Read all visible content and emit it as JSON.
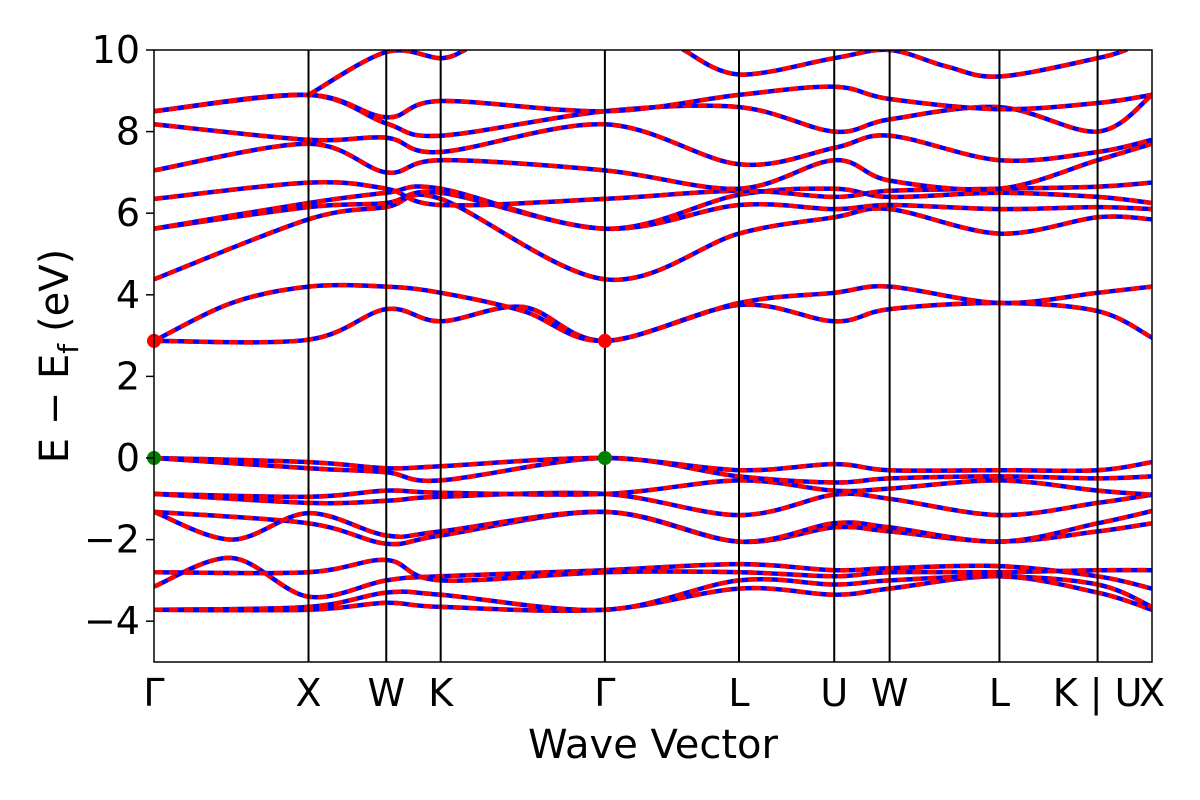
{
  "chart_data": {
    "type": "line",
    "title": "",
    "xlabel": "Wave Vector",
    "ylabel_main": "E − E",
    "ylabel_sub": "f",
    "ylabel_unit": "(eV)",
    "ylim": [
      -5,
      10
    ],
    "yticks": [
      -4,
      -2,
      0,
      2,
      4,
      6,
      8,
      10
    ],
    "ytick_labels": [
      "−4",
      "−2",
      "0",
      "2",
      "4",
      "6",
      "8",
      "10"
    ],
    "grid": false,
    "xlim": [
      0,
      10.27
    ],
    "kpath": [
      {
        "label": "Γ",
        "x": 0.0
      },
      {
        "label": "X",
        "x": 1.59
      },
      {
        "label": "W",
        "x": 2.39
      },
      {
        "label": "K",
        "x": 2.95
      },
      {
        "label": "Γ",
        "x": 4.64
      },
      {
        "label": "L",
        "x": 6.02
      },
      {
        "label": "U",
        "x": 7.0
      },
      {
        "label": "W",
        "x": 7.57
      },
      {
        "label": "L",
        "x": 8.7
      },
      {
        "label": "K | U",
        "x": 9.71
      },
      {
        "label": "X",
        "x": 10.27
      }
    ],
    "colors": {
      "overlay": "#ff0000",
      "base": "#0000ff",
      "axes": "#000000",
      "vbm": "#008000",
      "cbm": "#ff0000"
    },
    "extrema": {
      "vbm": [
        {
          "x": 0.0,
          "y": 0.0
        },
        {
          "x": 4.64,
          "y": 0.0
        }
      ],
      "cbm": [
        {
          "x": 0.0,
          "y": 2.87
        },
        {
          "x": 4.64,
          "y": 2.87
        }
      ]
    },
    "series": [
      {
        "values": [
          [
            0,
            -3.72
          ],
          [
            1.59,
            -3.72
          ],
          [
            2.39,
            -3.55
          ],
          [
            2.95,
            -3.65
          ],
          [
            4.64,
            -3.72
          ],
          [
            6.02,
            -3.2
          ],
          [
            7.0,
            -3.35
          ],
          [
            7.57,
            -3.2
          ],
          [
            8.7,
            -2.9
          ],
          [
            9.71,
            -3.3
          ],
          [
            10.27,
            -3.72
          ]
        ]
      },
      {
        "values": [
          [
            0,
            -3.72
          ],
          [
            1.59,
            -3.65
          ],
          [
            2.39,
            -3.3
          ],
          [
            2.95,
            -3.35
          ],
          [
            4.64,
            -3.72
          ],
          [
            6.02,
            -3.0
          ],
          [
            7.0,
            -3.1
          ],
          [
            7.57,
            -3.0
          ],
          [
            8.7,
            -2.9
          ],
          [
            9.71,
            -3.1
          ],
          [
            10.27,
            -3.65
          ]
        ]
      },
      {
        "values": [
          [
            0,
            -3.15
          ],
          [
            0.8,
            -2.45
          ],
          [
            1.59,
            -3.4
          ],
          [
            2.39,
            -3.0
          ],
          [
            2.95,
            -2.9
          ],
          [
            4.64,
            -2.75
          ],
          [
            6.02,
            -2.6
          ],
          [
            7.0,
            -2.75
          ],
          [
            7.57,
            -2.7
          ],
          [
            8.7,
            -2.65
          ],
          [
            9.71,
            -2.9
          ],
          [
            10.27,
            -3.2
          ]
        ]
      },
      {
        "values": [
          [
            0,
            -2.8
          ],
          [
            1.59,
            -2.8
          ],
          [
            2.39,
            -2.5
          ],
          [
            2.95,
            -3.0
          ],
          [
            4.64,
            -2.8
          ],
          [
            6.02,
            -2.8
          ],
          [
            7.0,
            -2.9
          ],
          [
            7.57,
            -2.8
          ],
          [
            8.7,
            -2.8
          ],
          [
            9.71,
            -2.75
          ],
          [
            10.27,
            -2.75
          ]
        ]
      },
      {
        "values": [
          [
            0,
            -1.32
          ],
          [
            1.59,
            -1.6
          ],
          [
            2.39,
            -2.1
          ],
          [
            2.95,
            -1.9
          ],
          [
            4.64,
            -1.32
          ],
          [
            6.02,
            -2.05
          ],
          [
            7.0,
            -1.7
          ],
          [
            7.57,
            -1.8
          ],
          [
            8.7,
            -2.05
          ],
          [
            9.71,
            -1.8
          ],
          [
            10.27,
            -1.6
          ]
        ]
      },
      {
        "values": [
          [
            0,
            -1.32
          ],
          [
            0.8,
            -2.0
          ],
          [
            1.59,
            -1.35
          ],
          [
            2.39,
            -1.9
          ],
          [
            2.95,
            -1.8
          ],
          [
            4.64,
            -1.32
          ],
          [
            6.02,
            -2.05
          ],
          [
            7.0,
            -1.6
          ],
          [
            7.57,
            -1.7
          ],
          [
            8.7,
            -2.05
          ],
          [
            9.71,
            -1.6
          ],
          [
            10.27,
            -1.3
          ]
        ]
      },
      {
        "values": [
          [
            0,
            -0.88
          ],
          [
            1.59,
            -1.1
          ],
          [
            2.39,
            -1.05
          ],
          [
            2.95,
            -0.95
          ],
          [
            4.64,
            -0.88
          ],
          [
            6.02,
            -1.4
          ],
          [
            7.0,
            -0.9
          ],
          [
            7.57,
            -1.0
          ],
          [
            8.7,
            -1.4
          ],
          [
            9.71,
            -1.1
          ],
          [
            10.27,
            -0.9
          ]
        ]
      },
      {
        "values": [
          [
            0,
            -0.88
          ],
          [
            1.59,
            -0.95
          ],
          [
            2.39,
            -0.8
          ],
          [
            2.95,
            -0.85
          ],
          [
            4.64,
            -0.88
          ],
          [
            6.02,
            -0.55
          ],
          [
            7.0,
            -0.8
          ],
          [
            7.57,
            -0.75
          ],
          [
            8.7,
            -0.55
          ],
          [
            9.71,
            -0.8
          ],
          [
            10.27,
            -0.9
          ]
        ]
      },
      {
        "values": [
          [
            0,
            0.0
          ],
          [
            1.59,
            -0.25
          ],
          [
            2.39,
            -0.35
          ],
          [
            2.95,
            -0.55
          ],
          [
            4.64,
            0.0
          ],
          [
            6.02,
            -0.45
          ],
          [
            7.0,
            -0.6
          ],
          [
            7.57,
            -0.5
          ],
          [
            8.7,
            -0.45
          ],
          [
            9.71,
            -0.5
          ],
          [
            10.27,
            -0.45
          ]
        ]
      },
      {
        "values": [
          [
            0,
            0.0
          ],
          [
            1.59,
            -0.1
          ],
          [
            2.39,
            -0.25
          ],
          [
            2.95,
            -0.2
          ],
          [
            4.64,
            0.0
          ],
          [
            6.02,
            -0.3
          ],
          [
            7.0,
            -0.15
          ],
          [
            7.57,
            -0.3
          ],
          [
            8.7,
            -0.3
          ],
          [
            9.71,
            -0.3
          ],
          [
            10.27,
            -0.1
          ]
        ]
      },
      {
        "values": [
          [
            0,
            2.87
          ],
          [
            1.59,
            2.9
          ],
          [
            2.39,
            3.65
          ],
          [
            2.95,
            3.35
          ],
          [
            3.8,
            3.7
          ],
          [
            4.64,
            2.87
          ],
          [
            6.02,
            3.75
          ],
          [
            7.0,
            3.35
          ],
          [
            7.57,
            3.65
          ],
          [
            8.7,
            3.8
          ],
          [
            9.71,
            3.6
          ],
          [
            10.27,
            2.95
          ]
        ]
      },
      {
        "values": [
          [
            0,
            2.87
          ],
          [
            0.8,
            3.8
          ],
          [
            1.59,
            4.2
          ],
          [
            2.39,
            4.2
          ],
          [
            2.95,
            4.05
          ],
          [
            3.8,
            3.6
          ],
          [
            4.64,
            2.87
          ],
          [
            6.02,
            3.8
          ],
          [
            7.0,
            4.05
          ],
          [
            7.57,
            4.2
          ],
          [
            8.7,
            3.8
          ],
          [
            9.71,
            4.05
          ],
          [
            10.27,
            4.2
          ]
        ]
      },
      {
        "values": [
          [
            0,
            4.38
          ],
          [
            1.59,
            5.85
          ],
          [
            2.39,
            6.15
          ],
          [
            2.95,
            6.35
          ],
          [
            4.64,
            4.38
          ],
          [
            6.02,
            5.5
          ],
          [
            7.0,
            5.9
          ],
          [
            7.57,
            6.1
          ],
          [
            8.7,
            5.5
          ],
          [
            9.71,
            5.9
          ],
          [
            10.27,
            5.85
          ]
        ]
      },
      {
        "values": [
          [
            0,
            5.62
          ],
          [
            1.59,
            6.15
          ],
          [
            2.39,
            6.25
          ],
          [
            2.95,
            6.5
          ],
          [
            4.64,
            5.62
          ],
          [
            6.02,
            6.2
          ],
          [
            7.0,
            6.1
          ],
          [
            7.57,
            6.2
          ],
          [
            8.7,
            6.1
          ],
          [
            9.71,
            6.15
          ],
          [
            10.27,
            6.1
          ]
        ]
      },
      {
        "values": [
          [
            0,
            5.62
          ],
          [
            1.59,
            6.25
          ],
          [
            2.39,
            6.5
          ],
          [
            2.95,
            6.6
          ],
          [
            4.64,
            5.62
          ],
          [
            6.02,
            6.45
          ],
          [
            7.0,
            6.6
          ],
          [
            7.57,
            6.4
          ],
          [
            8.7,
            6.5
          ],
          [
            9.71,
            6.4
          ],
          [
            10.27,
            6.25
          ]
        ]
      },
      {
        "values": [
          [
            0,
            6.35
          ],
          [
            1.59,
            6.75
          ],
          [
            2.39,
            6.6
          ],
          [
            2.95,
            6.2
          ],
          [
            4.64,
            6.35
          ],
          [
            6.02,
            6.55
          ],
          [
            7.0,
            6.4
          ],
          [
            7.57,
            6.55
          ],
          [
            8.7,
            6.6
          ],
          [
            9.71,
            6.65
          ],
          [
            10.27,
            6.75
          ]
        ]
      },
      {
        "values": [
          [
            0,
            7.05
          ],
          [
            1.59,
            7.7
          ],
          [
            2.39,
            7.0
          ],
          [
            2.95,
            7.3
          ],
          [
            4.64,
            7.05
          ],
          [
            6.02,
            6.6
          ],
          [
            7.0,
            7.3
          ],
          [
            7.57,
            6.8
          ],
          [
            8.7,
            6.6
          ],
          [
            9.71,
            7.3
          ],
          [
            10.27,
            7.7
          ]
        ]
      },
      {
        "values": [
          [
            0,
            8.18
          ],
          [
            1.59,
            7.8
          ],
          [
            2.39,
            7.85
          ],
          [
            2.95,
            7.5
          ],
          [
            4.64,
            8.18
          ],
          [
            6.02,
            7.2
          ],
          [
            7.0,
            7.6
          ],
          [
            7.57,
            7.9
          ],
          [
            8.7,
            7.3
          ],
          [
            9.71,
            7.5
          ],
          [
            10.27,
            7.8
          ]
        ]
      },
      {
        "values": [
          [
            0,
            8.5
          ],
          [
            1.59,
            8.9
          ],
          [
            2.39,
            8.2
          ],
          [
            2.95,
            7.9
          ],
          [
            4.64,
            8.5
          ],
          [
            6.02,
            8.6
          ],
          [
            7.0,
            8.0
          ],
          [
            7.57,
            8.3
          ],
          [
            8.7,
            8.6
          ],
          [
            9.71,
            8.0
          ],
          [
            10.27,
            8.9
          ]
        ]
      },
      {
        "values": [
          [
            0,
            8.5
          ],
          [
            1.59,
            8.9
          ],
          [
            2.39,
            8.35
          ],
          [
            2.95,
            8.75
          ],
          [
            4.64,
            8.5
          ],
          [
            6.02,
            8.9
          ],
          [
            7.0,
            9.1
          ],
          [
            7.57,
            8.8
          ],
          [
            8.7,
            8.55
          ],
          [
            9.71,
            8.7
          ],
          [
            10.27,
            8.9
          ]
        ]
      },
      {
        "values": [
          [
            1.59,
            8.9
          ],
          [
            2.39,
            9.95
          ],
          [
            2.95,
            9.8
          ],
          [
            3.2,
            10.0
          ]
        ]
      },
      {
        "values": [
          [
            5.45,
            10.0
          ],
          [
            6.02,
            9.4
          ],
          [
            7.0,
            9.8
          ],
          [
            7.57,
            10.0
          ],
          [
            8.15,
            9.6
          ],
          [
            8.7,
            9.35
          ],
          [
            9.71,
            9.8
          ],
          [
            10.0,
            10.0
          ]
        ]
      }
    ]
  }
}
